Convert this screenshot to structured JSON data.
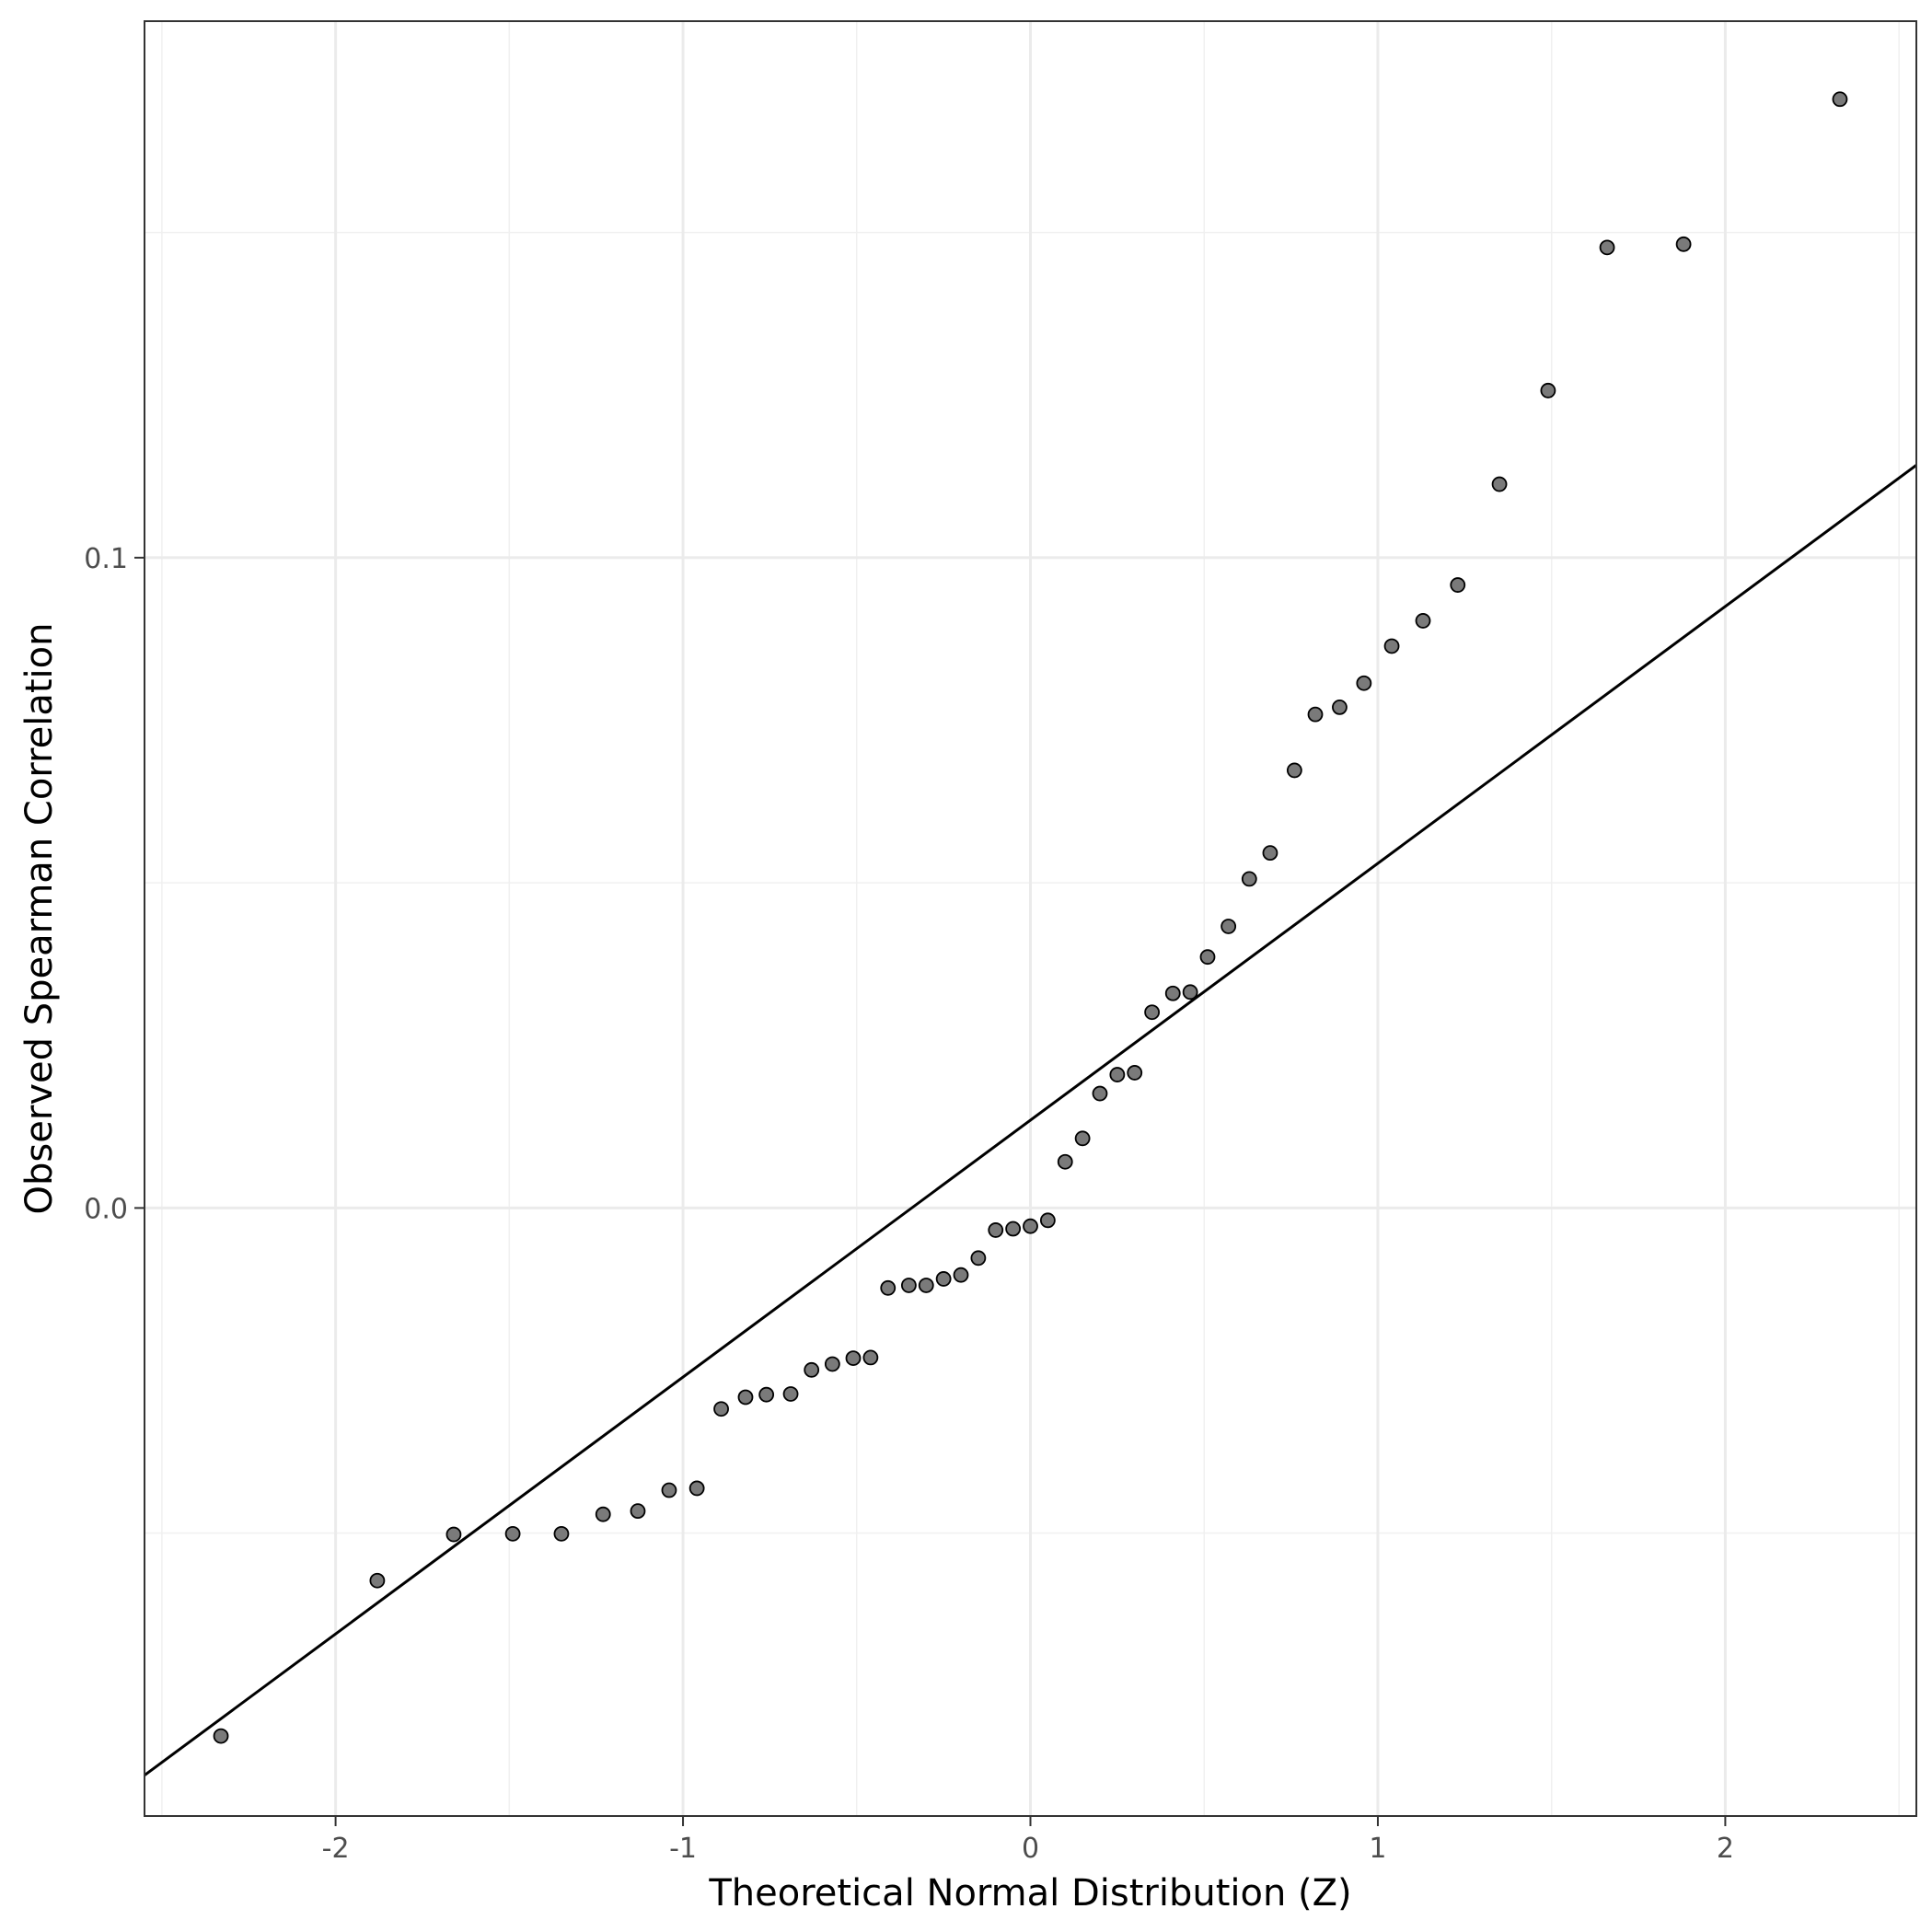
{
  "chart_data": {
    "type": "scatter",
    "xlabel": "Theoretical Normal Distribution (Z)",
    "ylabel": "Observed Spearman Correlation",
    "xlim": [
      -2.55,
      2.55
    ],
    "ylim": [
      -0.0935,
      0.1825
    ],
    "x_ticks": [
      -2,
      -1,
      0,
      1,
      2
    ],
    "x_tick_labels": [
      "-2",
      "-1",
      "0",
      "1",
      "2"
    ],
    "y_ticks": [
      0.0,
      0.1
    ],
    "y_tick_labels": [
      "0.0",
      "0.1"
    ],
    "x_minor_grid": [
      -2.5,
      -1.5,
      -0.5,
      0.5,
      1.5,
      2.5
    ],
    "y_minor_grid": [
      -0.05,
      0.05,
      0.15
    ],
    "grid": true,
    "point_color": "#6b6b6b",
    "point_stroke": "#000000",
    "reference_line": {
      "slope": 0.0395,
      "intercept": 0.0135,
      "color": "#000000"
    },
    "points": {
      "x": [
        -2.33,
        -1.88,
        -1.66,
        -1.49,
        -1.35,
        -1.23,
        -1.13,
        -1.04,
        -0.96,
        -0.89,
        -0.82,
        -0.76,
        -0.69,
        -0.63,
        -0.57,
        -0.51,
        -0.46,
        -0.41,
        -0.35,
        -0.3,
        -0.25,
        -0.2,
        -0.15,
        -0.1,
        -0.05,
        0.0,
        0.05,
        0.1,
        0.15,
        0.2,
        0.25,
        0.3,
        0.35,
        0.41,
        0.46,
        0.51,
        0.57,
        0.63,
        0.69,
        0.76,
        0.82,
        0.89,
        0.96,
        1.04,
        1.13,
        1.23,
        1.35,
        1.49,
        1.66,
        1.88,
        2.33
      ],
      "y": [
        -0.0812,
        -0.0573,
        -0.0502,
        -0.0501,
        -0.0501,
        -0.0471,
        -0.0466,
        -0.0434,
        -0.0431,
        -0.0309,
        -0.0291,
        -0.0287,
        -0.0286,
        -0.0249,
        -0.024,
        -0.0231,
        -0.023,
        -0.0123,
        -0.0119,
        -0.0119,
        -0.0109,
        -0.0103,
        -0.0077,
        -0.0034,
        -0.0032,
        -0.0028,
        -0.0019,
        0.0071,
        0.0107,
        0.0176,
        0.0205,
        0.0208,
        0.0301,
        0.033,
        0.0332,
        0.0386,
        0.0433,
        0.0506,
        0.0546,
        0.0673,
        0.0759,
        0.077,
        0.0807,
        0.0864,
        0.0903,
        0.0958,
        0.1113,
        0.1257,
        0.1477,
        0.1482,
        0.1705
      ]
    }
  }
}
